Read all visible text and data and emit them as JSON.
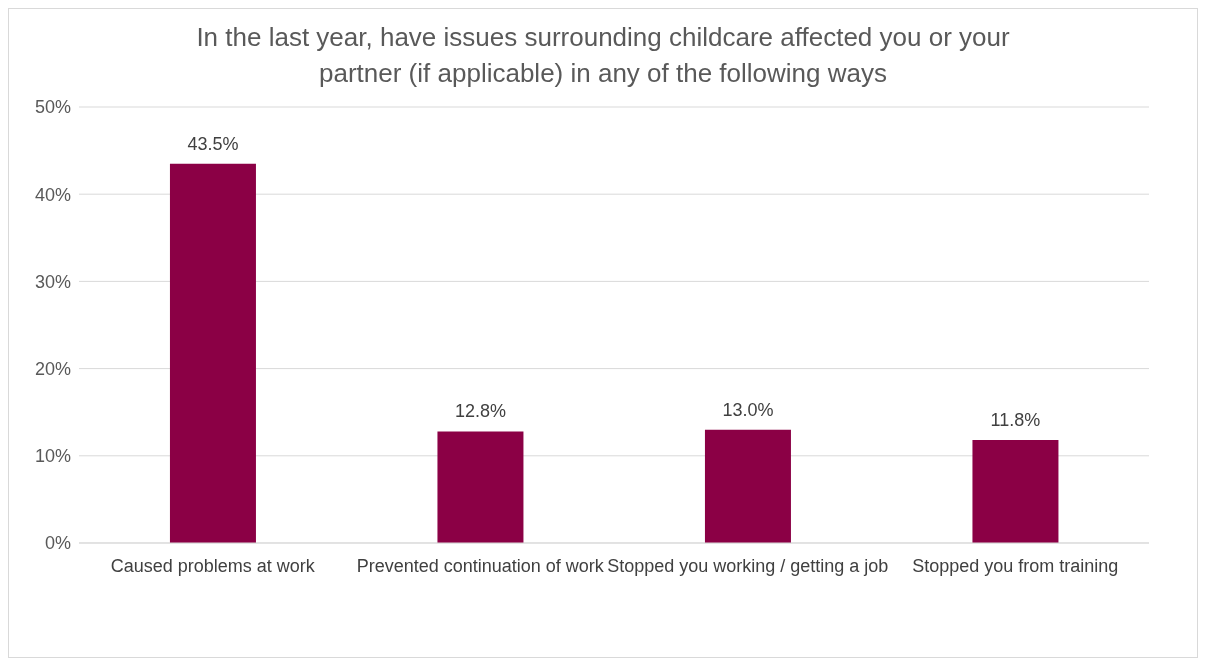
{
  "chart_data": {
    "type": "bar",
    "title": "In the last year, have issues surrounding childcare affected you or your partner (if applicable) in any of the following ways",
    "categories": [
      "Caused problems at work",
      "Prevented continuation of work",
      "Stopped you working / getting a job",
      "Stopped you from training"
    ],
    "values": [
      43.5,
      12.8,
      13.0,
      11.8
    ],
    "value_labels": [
      "43.5%",
      "12.8%",
      "13.0%",
      "11.8%"
    ],
    "color": "#8b0045",
    "ylim": [
      0,
      50
    ],
    "yticks": [
      {
        "value": 0,
        "label": "0%"
      },
      {
        "value": 10,
        "label": "10%"
      },
      {
        "value": 20,
        "label": "20%"
      },
      {
        "value": 30,
        "label": "30%"
      },
      {
        "value": 40,
        "label": "40%"
      },
      {
        "value": 50,
        "label": "50%"
      }
    ],
    "grid": "y",
    "legend": false
  }
}
